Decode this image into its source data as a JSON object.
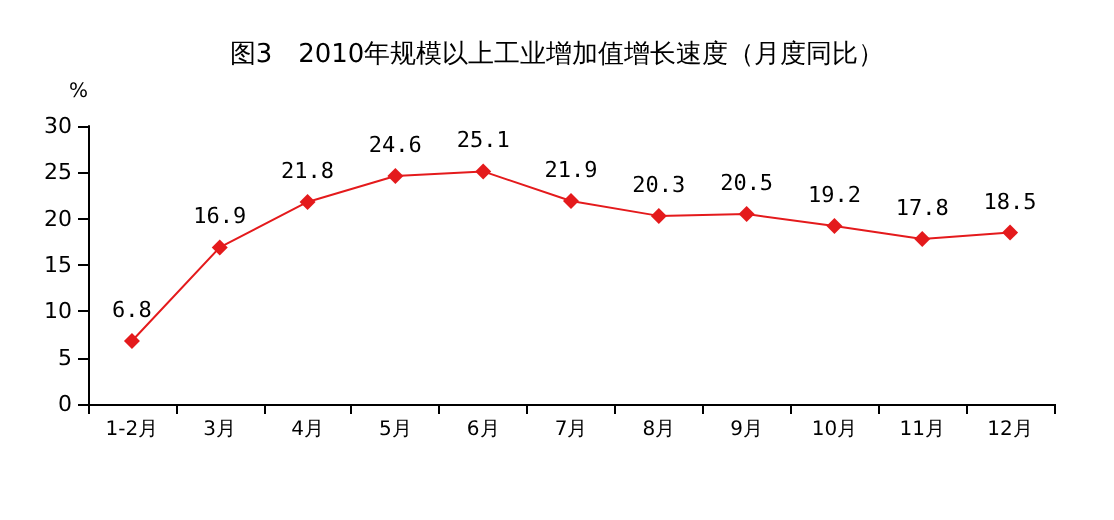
{
  "chart_data": {
    "type": "line",
    "title": "图3　2010年规模以上工业增加值增长速度（月度同比）",
    "ylabel": "%",
    "categories": [
      "1-2月",
      "3月",
      "4月",
      "5月",
      "6月",
      "7月",
      "8月",
      "9月",
      "10月",
      "11月",
      "12月"
    ],
    "series": [
      {
        "color": "#e41a1c",
        "values": [
          6.8,
          16.9,
          21.8,
          24.6,
          25.1,
          21.9,
          20.3,
          20.5,
          19.2,
          17.8,
          18.5
        ]
      }
    ],
    "ylim": [
      0,
      30
    ],
    "yticks": [
      0,
      5,
      10,
      15,
      20,
      25,
      30
    ],
    "marker": "diamond",
    "line_style": "solid",
    "data_labels": true,
    "grid": false
  }
}
